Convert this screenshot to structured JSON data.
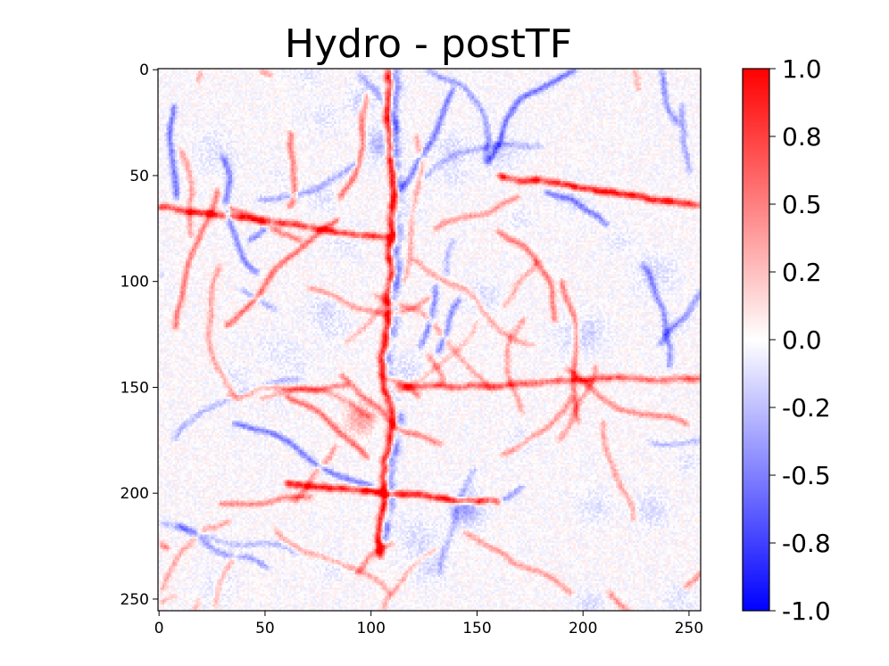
{
  "chart_data": {
    "type": "heatmap",
    "title": "Hydro - postTF",
    "xlabel": "",
    "ylabel": "",
    "grid": false,
    "x_range": [
      0,
      255
    ],
    "y_range": [
      255,
      0
    ],
    "x_ticks": [
      0,
      50,
      100,
      150,
      200,
      250
    ],
    "x_tick_labels": [
      "0",
      "50",
      "100",
      "150",
      "200",
      "250"
    ],
    "y_ticks": [
      0,
      50,
      100,
      150,
      200,
      250
    ],
    "y_tick_labels": [
      "0",
      "50",
      "100",
      "150",
      "200",
      "250"
    ],
    "colormap": "bwr",
    "colormap_colors": {
      "low": "#0000ff",
      "mid": "#ffffff",
      "high": "#ff0000"
    },
    "value_range": [
      -1.0,
      1.0
    ],
    "colorbar_ticks": [
      1.0,
      0.75,
      0.5,
      0.25,
      0.0,
      -0.25,
      -0.5,
      -0.75,
      -1.0
    ],
    "colorbar_tick_labels": [
      "1.0",
      "0.8",
      "0.5",
      "0.2",
      "0.0",
      "-0.2",
      "-0.5",
      "-0.8",
      "-1.0"
    ],
    "grid_size": [
      256,
      256
    ],
    "dominant_value_range": [
      -0.3,
      0.3
    ],
    "features": [
      {
        "kind": "vertical filament",
        "x": 108,
        "y_from": 0,
        "y_to": 230,
        "value": 0.3
      },
      {
        "kind": "diagonal filament",
        "x_from": 160,
        "y_from": 50,
        "x_to": 255,
        "y_to": 65,
        "value": 0.3
      },
      {
        "kind": "diagonal filament",
        "x_from": 0,
        "y_from": 65,
        "x_to": 110,
        "y_to": 80,
        "value": 0.25
      },
      {
        "kind": "diagonal filament",
        "x_from": 110,
        "y_from": 150,
        "x_to": 255,
        "y_to": 145,
        "value": 0.2
      },
      {
        "kind": "diagonal filament",
        "x_from": 60,
        "y_from": 195,
        "x_to": 160,
        "y_to": 205,
        "value": 0.3
      },
      {
        "kind": "blob",
        "x": 145,
        "y": 207,
        "value": -0.4
      },
      {
        "kind": "blob",
        "x": 105,
        "y": 35,
        "value": -0.3
      },
      {
        "kind": "blob",
        "x": 95,
        "y": 165,
        "value": 0.35
      }
    ]
  }
}
